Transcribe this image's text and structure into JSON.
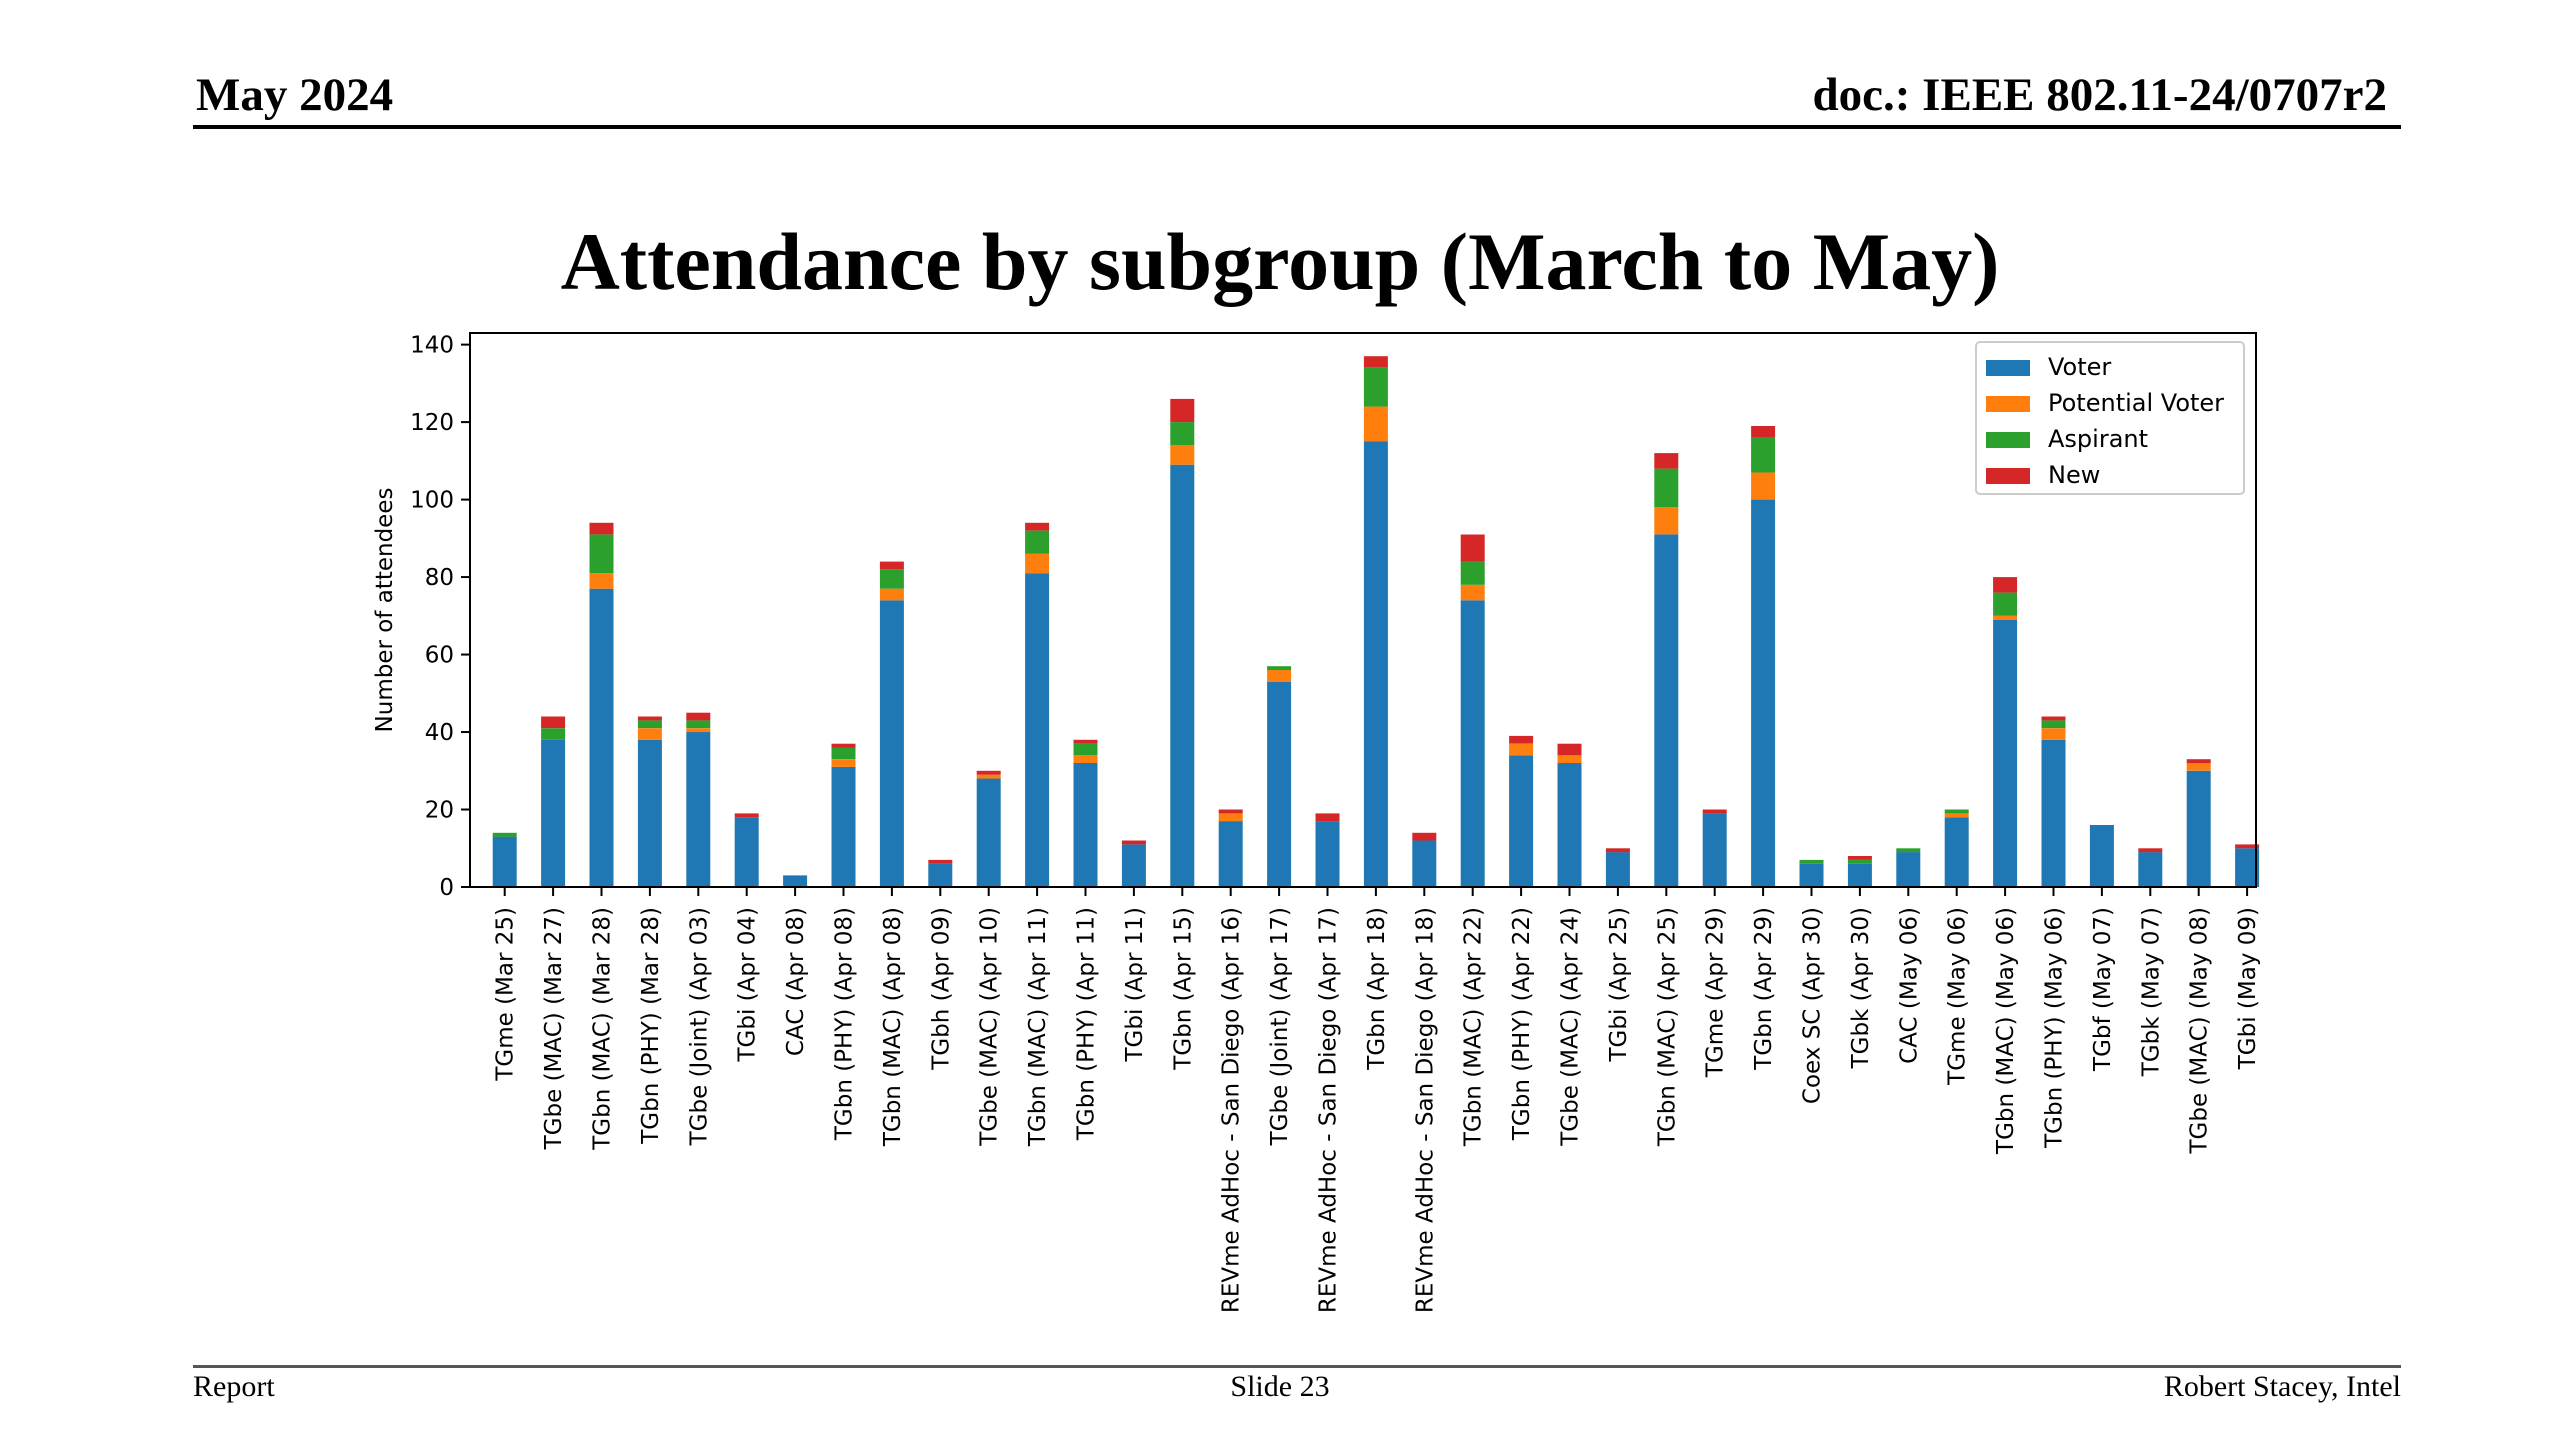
{
  "header": {
    "date": "May 2024",
    "doc_id": "doc.: IEEE 802.11-24/0707r2"
  },
  "slide_title": "Attendance by subgroup (March to May)",
  "footer": {
    "left": "Report",
    "center": "Slide 23",
    "right": "Robert Stacey, Intel"
  },
  "chart_data": {
    "type": "bar",
    "stacked": true,
    "title": "",
    "xlabel": "",
    "ylabel": "Number of attendees",
    "ylim": [
      0,
      143
    ],
    "yticks": [
      0,
      20,
      40,
      60,
      80,
      100,
      120,
      140
    ],
    "grid": false,
    "legend_position": "top-right",
    "categories": [
      "TGme (Mar 25)",
      "TGbe (MAC) (Mar 27)",
      "TGbn (MAC) (Mar 28)",
      "TGbn (PHY) (Mar 28)",
      "TGbe (Joint) (Apr 03)",
      "TGbi (Apr 04)",
      "CAC (Apr 08)",
      "TGbn (PHY) (Apr 08)",
      "TGbn (MAC) (Apr 08)",
      "TGbh (Apr 09)",
      "TGbe (MAC) (Apr 10)",
      "TGbn (MAC) (Apr 11)",
      "TGbn (PHY) (Apr 11)",
      "TGbi (Apr 11)",
      "TGbn (Apr 15)",
      "REVme AdHoc - San Diego (Apr 16)",
      "TGbe (Joint) (Apr 17)",
      "REVme AdHoc - San Diego (Apr 17)",
      "TGbn (Apr 18)",
      "REVme AdHoc - San Diego (Apr 18)",
      "TGbn (MAC) (Apr 22)",
      "TGbn (PHY) (Apr 22)",
      "TGbe (MAC) (Apr 24)",
      "TGbi (Apr 25)",
      "TGbn (MAC) (Apr 25)",
      "TGme (Apr 29)",
      "TGbn (Apr 29)",
      "Coex SC (Apr 30)",
      "TGbk (Apr 30)",
      "CAC (May 06)",
      "TGme (May 06)",
      "TGbn (MAC) (May 06)",
      "TGbn (PHY) (May 06)",
      "TGbf (May 07)",
      "TGbk (May 07)",
      "TGbe (MAC) (May 08)",
      "TGbi (May 09)"
    ],
    "series": [
      {
        "name": "Voter",
        "color": "#1f77b4",
        "values": [
          13,
          38,
          77,
          38,
          40,
          18,
          3,
          31,
          74,
          6,
          28,
          81,
          32,
          11,
          109,
          17,
          53,
          17,
          115,
          12,
          74,
          34,
          32,
          9,
          91,
          19,
          100,
          6,
          6,
          9,
          18,
          69,
          38,
          16,
          9,
          30,
          10
        ]
      },
      {
        "name": "Potential Voter",
        "color": "#ff7f0e",
        "values": [
          0,
          0,
          4,
          3,
          1,
          0,
          0,
          2,
          3,
          0,
          1,
          5,
          2,
          0,
          5,
          2,
          3,
          0,
          9,
          0,
          4,
          3,
          2,
          0,
          7,
          0,
          7,
          0,
          0,
          0,
          1,
          1,
          3,
          0,
          0,
          2,
          0
        ]
      },
      {
        "name": "Aspirant",
        "color": "#2ca02c",
        "values": [
          1,
          3,
          10,
          2,
          2,
          0,
          0,
          3,
          5,
          0,
          0,
          6,
          3,
          0,
          6,
          0,
          1,
          0,
          10,
          0,
          6,
          0,
          0,
          0,
          10,
          0,
          9,
          1,
          1,
          1,
          1,
          6,
          2,
          0,
          0,
          0,
          0
        ]
      },
      {
        "name": "New",
        "color": "#d62728",
        "values": [
          0,
          3,
          3,
          1,
          2,
          1,
          0,
          1,
          2,
          1,
          1,
          2,
          1,
          1,
          6,
          1,
          0,
          2,
          3,
          2,
          7,
          2,
          3,
          1,
          4,
          1,
          3,
          0,
          1,
          0,
          0,
          4,
          1,
          0,
          1,
          1,
          1
        ]
      }
    ]
  }
}
